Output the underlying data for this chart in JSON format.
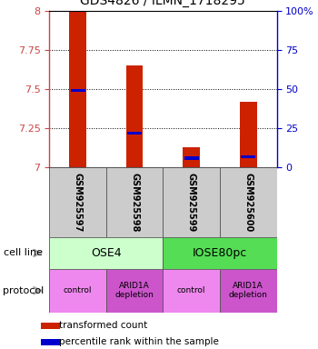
{
  "title": "GDS4826 / ILMN_1718295",
  "samples": [
    "GSM925597",
    "GSM925598",
    "GSM925599",
    "GSM925600"
  ],
  "bar_bottoms": [
    7.0,
    7.0,
    7.0,
    7.0
  ],
  "bar_tops": [
    7.99,
    7.65,
    7.13,
    7.42
  ],
  "blue_values": [
    7.49,
    7.22,
    7.06,
    7.07
  ],
  "ylim": [
    7.0,
    8.0
  ],
  "yticks": [
    7.0,
    7.25,
    7.5,
    7.75,
    8.0
  ],
  "ytick_labels": [
    "7",
    "7.25",
    "7.5",
    "7.75",
    "8"
  ],
  "right_yticks": [
    0,
    25,
    50,
    75,
    100
  ],
  "right_ytick_labels": [
    "0",
    "25",
    "50",
    "75",
    "100%"
  ],
  "bar_color": "#cc2200",
  "blue_color": "#0000cc",
  "cell_lines": [
    "OSE4",
    "IOSE80pc"
  ],
  "cell_line_spans": [
    [
      0,
      2
    ],
    [
      2,
      4
    ]
  ],
  "cell_line_color_light": "#ccffcc",
  "cell_line_color_dark": "#55dd55",
  "protocol_color_light": "#ee88ee",
  "protocol_color_dark": "#cc55cc",
  "protocols": [
    "control",
    "ARID1A\ndepletion",
    "control",
    "ARID1A\ndepletion"
  ],
  "sample_box_color": "#cccccc",
  "legend_red_label": "transformed count",
  "legend_blue_label": "percentile rank within the sample",
  "cell_line_label": "cell line",
  "protocol_label": "protocol",
  "left_axis_color": "#cc4444",
  "right_axis_color": "#0000cc",
  "arrow_color": "#aaaaaa"
}
